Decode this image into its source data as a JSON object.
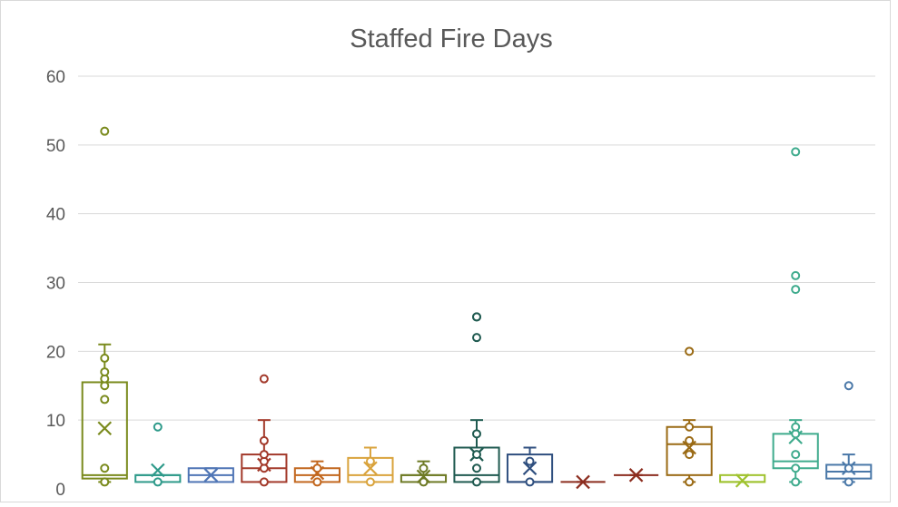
{
  "chart_data": {
    "type": "box",
    "title": "Staffed Fire Days",
    "xlabel": "",
    "ylabel": "",
    "ylim": [
      0,
      60
    ],
    "yticks": [
      0,
      10,
      20,
      30,
      40,
      50,
      60
    ],
    "grid": true,
    "legend": "none",
    "series": [
      {
        "color": "#7a8a1d",
        "min": 1,
        "q1": 1.5,
        "median": 2,
        "q3": 15.5,
        "max": 21,
        "mean": 8.8,
        "points": [
          1,
          3,
          13,
          15,
          16,
          17,
          19
        ],
        "outliers": [
          52
        ]
      },
      {
        "color": "#2e9a8a",
        "min": 1,
        "q1": 1,
        "median": 2,
        "q3": 2,
        "max": 2,
        "mean": 2.7,
        "points": [
          1
        ],
        "outliers": [
          9
        ]
      },
      {
        "color": "#4f75b5",
        "min": 1,
        "q1": 1,
        "median": 2,
        "q3": 3,
        "max": 3,
        "mean": 2,
        "points": [],
        "outliers": []
      },
      {
        "color": "#a33a2b",
        "min": 1,
        "q1": 1,
        "median": 3,
        "q3": 5,
        "max": 10,
        "mean": 3.5,
        "points": [
          1,
          3,
          4,
          5,
          7
        ],
        "outliers": [
          16
        ]
      },
      {
        "color": "#c2671e",
        "min": 1,
        "q1": 1,
        "median": 2,
        "q3": 3,
        "max": 4,
        "mean": 2.3,
        "points": [
          1,
          3
        ],
        "outliers": []
      },
      {
        "color": "#d9a33c",
        "min": 1,
        "q1": 1,
        "median": 2,
        "q3": 4.5,
        "max": 6,
        "mean": 3,
        "points": [
          1,
          4
        ],
        "outliers": []
      },
      {
        "color": "#6e7a25",
        "min": 1,
        "q1": 1,
        "median": 2,
        "q3": 2,
        "max": 4,
        "mean": 1.8,
        "points": [
          1,
          3
        ],
        "outliers": []
      },
      {
        "color": "#1f5a50",
        "min": 1,
        "q1": 1,
        "median": 2,
        "q3": 6,
        "max": 10,
        "mean": 5,
        "points": [
          1,
          3,
          5,
          8
        ],
        "outliers": [
          22,
          25,
          25
        ]
      },
      {
        "color": "#2f4f7f",
        "min": 1,
        "q1": 1,
        "median": 1,
        "q3": 5,
        "max": 6,
        "mean": 3,
        "points": [
          1,
          4
        ],
        "outliers": []
      },
      {
        "color": "#8c2d1f",
        "min": 1,
        "q1": 1,
        "median": 1,
        "q3": 1,
        "max": 1,
        "mean": 1,
        "points": [],
        "outliers": []
      },
      {
        "color": "#8c2d1f",
        "min": 2,
        "q1": 2,
        "median": 2,
        "q3": 2,
        "max": 2,
        "mean": 2,
        "points": [],
        "outliers": []
      },
      {
        "color": "#9a6a14",
        "min": 1,
        "q1": 2,
        "median": 6.5,
        "q3": 9,
        "max": 10,
        "mean": 6,
        "points": [
          1,
          5,
          7,
          9
        ],
        "outliers": [
          20
        ]
      },
      {
        "color": "#9fc22e",
        "min": 1,
        "q1": 1,
        "median": 1,
        "q3": 2,
        "max": 2,
        "mean": 1.2,
        "points": [],
        "outliers": []
      },
      {
        "color": "#3fab8d",
        "min": 1,
        "q1": 3,
        "median": 4,
        "q3": 8,
        "max": 10,
        "mean": 7.5,
        "points": [
          1,
          3,
          5,
          8,
          9
        ],
        "outliers": [
          29,
          31,
          49
        ]
      },
      {
        "color": "#4a78a8",
        "min": 1,
        "q1": 1.5,
        "median": 2.5,
        "q3": 3.5,
        "max": 5,
        "mean": 3,
        "points": [
          1,
          3
        ],
        "outliers": [
          15
        ]
      }
    ]
  }
}
